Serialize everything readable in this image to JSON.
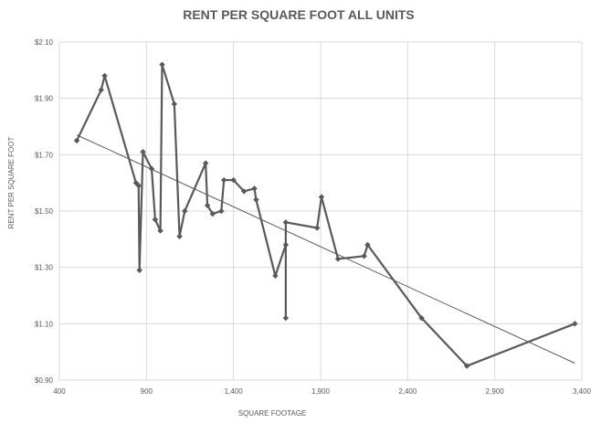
{
  "chart_data": {
    "type": "scatter",
    "title": "RENT PER SQUARE FOOT ALL UNITS",
    "xlabel": "SQUARE FOOTAGE",
    "ylabel": "RENT PER SQUARE FOOT",
    "xlim": [
      400,
      3400
    ],
    "ylim": [
      0.9,
      2.1
    ],
    "x_ticks": [
      400,
      900,
      1400,
      1900,
      2400,
      2900,
      3400
    ],
    "x_tick_labels": [
      "400",
      "900",
      "1,400",
      "1,900",
      "2,400",
      "2,900",
      "3,400"
    ],
    "y_ticks": [
      0.9,
      1.1,
      1.3,
      1.5,
      1.7,
      1.9,
      2.1
    ],
    "y_tick_labels": [
      "$0.90",
      "$1.10",
      "$1.30",
      "$1.50",
      "$1.70",
      "$1.90",
      "$2.10"
    ],
    "grid": true,
    "legend": "none",
    "series": [
      {
        "points": [
          [
            500,
            1.75
          ],
          [
            640,
            1.93
          ],
          [
            660,
            1.98
          ],
          [
            840,
            1.6
          ],
          [
            855,
            1.59
          ],
          [
            860,
            1.29
          ],
          [
            880,
            1.71
          ],
          [
            930,
            1.65
          ],
          [
            950,
            1.47
          ],
          [
            980,
            1.43
          ],
          [
            990,
            2.02
          ],
          [
            1060,
            1.88
          ],
          [
            1090,
            1.41
          ],
          [
            1120,
            1.5
          ],
          [
            1240,
            1.67
          ],
          [
            1250,
            1.52
          ],
          [
            1280,
            1.49
          ],
          [
            1330,
            1.5
          ],
          [
            1345,
            1.61
          ],
          [
            1400,
            1.61
          ],
          [
            1460,
            1.57
          ],
          [
            1520,
            1.58
          ],
          [
            1530,
            1.54
          ],
          [
            1640,
            1.27
          ],
          [
            1700,
            1.38
          ],
          [
            1700,
            1.12
          ],
          [
            1700,
            1.46
          ],
          [
            1880,
            1.44
          ],
          [
            1905,
            1.55
          ],
          [
            2000,
            1.33
          ],
          [
            2150,
            1.34
          ],
          [
            2170,
            1.38
          ],
          [
            2480,
            1.12
          ],
          [
            2740,
            0.95
          ],
          [
            3360,
            1.1
          ]
        ],
        "color": "#595959",
        "marker": "diamond"
      }
    ],
    "trendline": {
      "type": "linear",
      "x": [
        500,
        3360
      ],
      "y": [
        1.77,
        0.96
      ],
      "color": "#595959"
    }
  }
}
